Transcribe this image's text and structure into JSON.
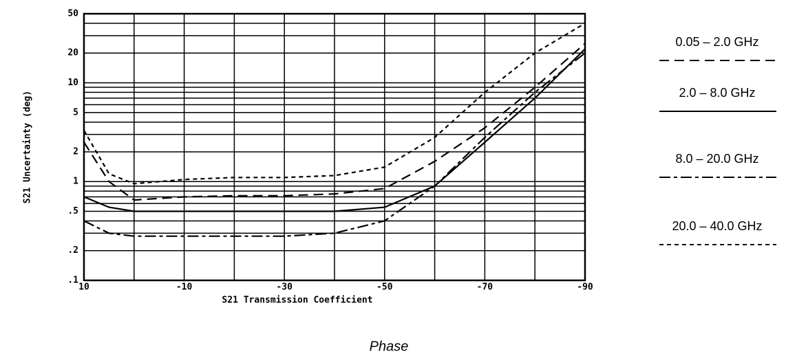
{
  "chart_data": {
    "type": "line",
    "ylabel": "S21 Uncertainty (deg)",
    "xlabel": "S21 Transmission Coefficient",
    "subtitle": "Phase",
    "x": [
      10,
      5,
      0,
      -10,
      -20,
      -30,
      -40,
      -50,
      -60,
      -70,
      -80,
      -90
    ],
    "series": [
      {
        "name": "0.05 – 2.0 GHz",
        "color": "#000000",
        "dash": "14,8",
        "values": [
          2.5,
          1.0,
          0.65,
          0.7,
          0.72,
          0.72,
          0.75,
          0.85,
          1.6,
          3.5,
          9,
          25
        ]
      },
      {
        "name": "2.0 – 8.0 GHz",
        "color": "#000000",
        "dash": "none",
        "values": [
          0.7,
          0.55,
          0.5,
          0.5,
          0.5,
          0.5,
          0.5,
          0.55,
          0.9,
          2.5,
          7,
          22
        ]
      },
      {
        "name": "8.0 – 20.0 GHz",
        "color": "#000000",
        "dash": "16,5,5,5",
        "values": [
          0.4,
          0.3,
          0.28,
          0.28,
          0.28,
          0.28,
          0.3,
          0.4,
          0.9,
          2.8,
          8,
          20
        ]
      },
      {
        "name": "20.0 – 40.0 GHz",
        "color": "#000000",
        "dash": "6,5",
        "values": [
          3.3,
          1.2,
          0.95,
          1.05,
          1.1,
          1.1,
          1.15,
          1.4,
          2.8,
          8,
          20,
          40
        ]
      }
    ],
    "xlim": [
      10,
      -90
    ],
    "xticks": [
      10,
      -10,
      -30,
      -50,
      -70,
      -90
    ],
    "x_minor_ticks": [
      0,
      -20,
      -40,
      -60,
      -80
    ],
    "ylim": [
      0.1,
      50
    ],
    "yscale": "log",
    "yticks": [
      50,
      20,
      10,
      5,
      2,
      1,
      {
        "value": 0.5,
        "label": ".5"
      },
      {
        "value": 0.2,
        "label": ".2"
      },
      {
        "value": 0.1,
        "label": ".1"
      }
    ],
    "y_minor_ticks": [
      0.3,
      0.4,
      0.6,
      0.7,
      0.8,
      0.9,
      3,
      4,
      6,
      7,
      8,
      9,
      30,
      40
    ],
    "grid": true
  }
}
